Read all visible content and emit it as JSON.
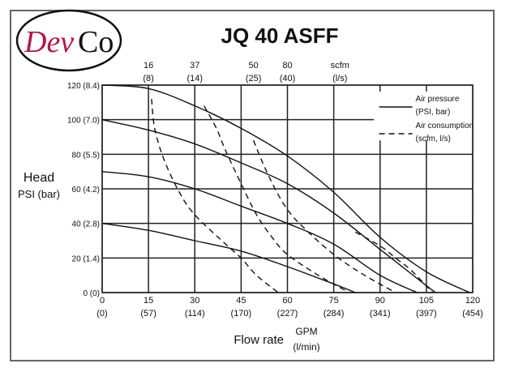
{
  "logo": {
    "text_dev": "Dev",
    "text_co": "Co",
    "colors": {
      "dev": "#b0174f",
      "co": "#111111",
      "ring": "#111111"
    }
  },
  "chart_data": {
    "type": "line",
    "title": "JQ 40 ASFF",
    "ylabel": "Head",
    "ylabel_units": "PSI (bar)",
    "xlabel": "Flow rate",
    "xlabel_units_top": "GPM",
    "xlabel_units_bottom": "(l/min)",
    "xlim": [
      0,
      120
    ],
    "ylim": [
      0,
      120
    ],
    "grid": true,
    "x_ticks": [
      {
        "value": 0,
        "label": "0",
        "sub": "(0)"
      },
      {
        "value": 15,
        "label": "15",
        "sub": "(57)"
      },
      {
        "value": 30,
        "label": "30",
        "sub": "(114)"
      },
      {
        "value": 45,
        "label": "45",
        "sub": "(170)"
      },
      {
        "value": 60,
        "label": "60",
        "sub": "(227)"
      },
      {
        "value": 75,
        "label": "75",
        "sub": "(284)"
      },
      {
        "value": 90,
        "label": "90",
        "sub": "(341)"
      },
      {
        "value": 105,
        "label": "105",
        "sub": "(397)"
      },
      {
        "value": 120,
        "label": "120",
        "sub": "(454)"
      }
    ],
    "y_ticks": [
      {
        "value": 0,
        "label": "0 (0)"
      },
      {
        "value": 20,
        "label": "20 (1.4)"
      },
      {
        "value": 40,
        "label": "40 (2.8)"
      },
      {
        "value": 60,
        "label": "60 (4.2)"
      },
      {
        "value": 80,
        "label": "80 (5.5)"
      },
      {
        "value": 100,
        "label": "100 (7.0)"
      },
      {
        "value": 120,
        "label": "120 (8.4)"
      }
    ],
    "top_axis_labels": [
      {
        "at_gpm": 15,
        "label": "16",
        "sub": "(8)"
      },
      {
        "at_gpm": 30,
        "label": "37",
        "sub": "(14)"
      },
      {
        "at_gpm": 49,
        "label": "50",
        "sub": "(25)"
      },
      {
        "at_gpm": 60,
        "label": "80",
        "sub": "(40)"
      },
      {
        "at_gpm": 77,
        "label": "scfm",
        "sub": "(l/s)"
      }
    ],
    "legend": {
      "placement": "top-right",
      "entries": [
        {
          "style": "solid",
          "line1": "Air pressure",
          "line2": "(PSI, bar)"
        },
        {
          "style": "dashed",
          "line1": "Air consumption",
          "line2": "(scfm, l/s)"
        }
      ]
    },
    "series": [
      {
        "style": "solid",
        "points": [
          [
            0,
            120
          ],
          [
            15,
            118
          ],
          [
            30,
            108
          ],
          [
            45,
            95
          ],
          [
            60,
            79
          ],
          [
            75,
            58
          ],
          [
            90,
            32
          ],
          [
            105,
            12
          ],
          [
            119,
            0
          ]
        ]
      },
      {
        "style": "solid",
        "points": [
          [
            0,
            100
          ],
          [
            15,
            94
          ],
          [
            30,
            86
          ],
          [
            45,
            75
          ],
          [
            60,
            63
          ],
          [
            75,
            46
          ],
          [
            90,
            25
          ],
          [
            105,
            4
          ],
          [
            108,
            0
          ]
        ]
      },
      {
        "style": "solid",
        "points": [
          [
            0,
            70
          ],
          [
            15,
            67
          ],
          [
            30,
            60
          ],
          [
            45,
            50
          ],
          [
            60,
            40
          ],
          [
            75,
            28
          ],
          [
            90,
            10
          ],
          [
            102,
            0
          ]
        ]
      },
      {
        "style": "solid",
        "points": [
          [
            0,
            40
          ],
          [
            15,
            36
          ],
          [
            30,
            30
          ],
          [
            45,
            24
          ],
          [
            60,
            15
          ],
          [
            75,
            5
          ],
          [
            82,
            0
          ]
        ]
      },
      {
        "style": "dashed",
        "points": [
          [
            16,
            112
          ],
          [
            17,
            95
          ],
          [
            20,
            77
          ],
          [
            25,
            58
          ],
          [
            30,
            45
          ],
          [
            40,
            28
          ],
          [
            45,
            20
          ],
          [
            50,
            10
          ],
          [
            57,
            0
          ]
        ]
      },
      {
        "style": "dashed",
        "points": [
          [
            33,
            108
          ],
          [
            37,
            95
          ],
          [
            40,
            82
          ],
          [
            45,
            63
          ],
          [
            50,
            45
          ],
          [
            55,
            32
          ],
          [
            60,
            22
          ],
          [
            70,
            10
          ],
          [
            80,
            0
          ]
        ]
      },
      {
        "style": "dashed",
        "points": [
          [
            49,
            88
          ],
          [
            52,
            75
          ],
          [
            56,
            60
          ],
          [
            60,
            48
          ],
          [
            65,
            38
          ],
          [
            75,
            22
          ],
          [
            85,
            10
          ],
          [
            95,
            0
          ]
        ]
      },
      {
        "style": "dashed",
        "points": [
          [
            82,
            35
          ],
          [
            90,
            27
          ],
          [
            95,
            20
          ],
          [
            100,
            13
          ],
          [
            107,
            0
          ]
        ]
      }
    ]
  }
}
